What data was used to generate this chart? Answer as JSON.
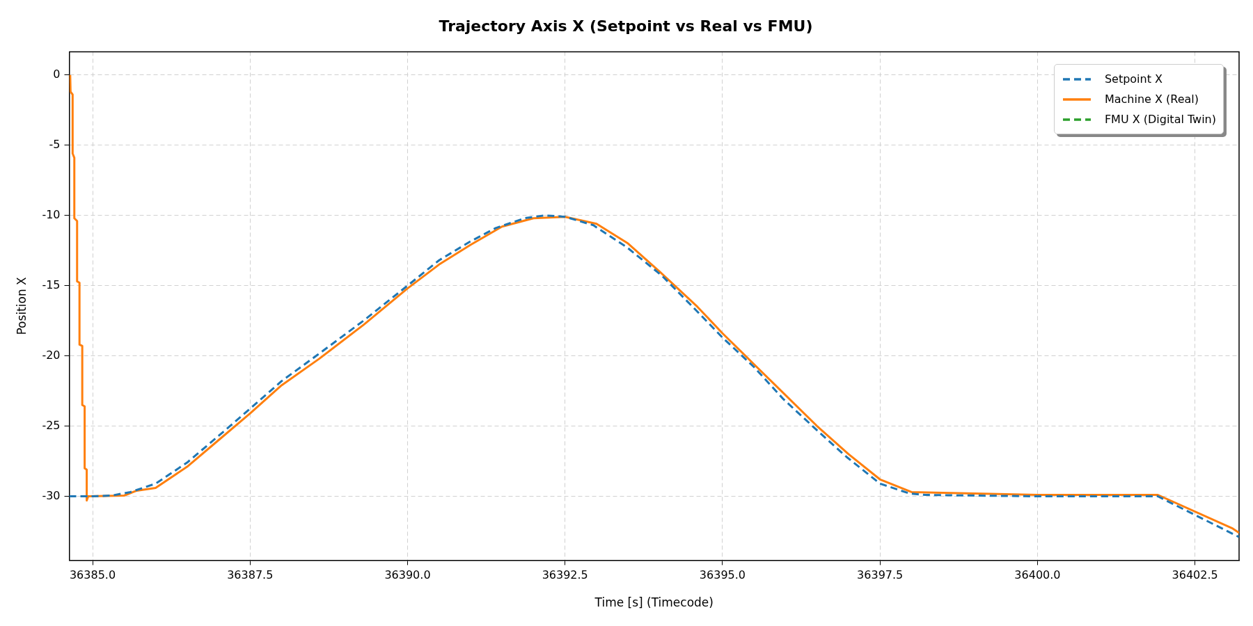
{
  "chart_data": {
    "type": "line",
    "title": "Trajectory Axis X (Setpoint vs Real vs FMU)",
    "xlabel": "Time [s] (Timecode)",
    "ylabel": "Position X",
    "xlim": [
      36384.63,
      36403.2
    ],
    "ylim": [
      -34.55,
      1.65
    ],
    "xticks": [
      {
        "value": 36385,
        "label": "36385.0"
      },
      {
        "value": 36387.5,
        "label": "36387.5"
      },
      {
        "value": 36390,
        "label": "36390.0"
      },
      {
        "value": 36392.5,
        "label": "36392.5"
      },
      {
        "value": 36395,
        "label": "36395.0"
      },
      {
        "value": 36397.5,
        "label": "36397.5"
      },
      {
        "value": 36400,
        "label": "36400.0"
      },
      {
        "value": 36402.5,
        "label": "36402.5"
      }
    ],
    "yticks": [
      -30,
      -25,
      -20,
      -15,
      -10,
      -5,
      0
    ],
    "grid": true,
    "legend": "top right",
    "marker": "none",
    "series": [
      {
        "name": "Setpoint X",
        "color": "#1f77b4",
        "line_style": "dashed",
        "x": [
          36384.63,
          36385.0,
          36385.3,
          36385.6,
          36386.0,
          36386.5,
          36387.0,
          36387.49,
          36388.0,
          36388.58,
          36389.3,
          36390.0,
          36390.5,
          36390.98,
          36391.4,
          36391.86,
          36392.18,
          36392.5,
          36392.95,
          36393.49,
          36394.04,
          36394.59,
          36395.0,
          36395.5,
          36395.97,
          36396.5,
          36396.97,
          36397.5,
          36397.97,
          36398.22,
          36399.0,
          36400.0,
          36401.91,
          36403.2
        ],
        "values": [
          -30,
          -30,
          -29.95,
          -29.7,
          -29.1,
          -27.6,
          -25.7,
          -23.8,
          -21.8,
          -19.9,
          -17.5,
          -15.0,
          -13.2,
          -11.9,
          -10.9,
          -10.2,
          -10.0,
          -10.1,
          -10.7,
          -12.3,
          -14.3,
          -16.8,
          -18.7,
          -20.8,
          -23.1,
          -25.3,
          -27.2,
          -29.1,
          -29.8,
          -29.9,
          -29.95,
          -30.0,
          -30.0,
          -32.9
        ]
      },
      {
        "name": "Machine X (Real)",
        "color": "#ff7f0e",
        "line_style": "solid",
        "x": [
          36384.644,
          36384.65,
          36384.683,
          36384.683,
          36384.71,
          36384.71,
          36384.754,
          36384.754,
          36384.792,
          36384.792,
          36384.836,
          36384.836,
          36384.874,
          36384.874,
          36384.907,
          36384.907,
          36384.93,
          36385.5,
          36385.7,
          36386.0,
          36386.5,
          36387.0,
          36387.5,
          36388.0,
          36388.6,
          36389.3,
          36390.0,
          36390.5,
          36391.0,
          36391.5,
          36392.0,
          36392.5,
          36393.0,
          36393.5,
          36394.0,
          36394.6,
          36395.0,
          36395.5,
          36396.0,
          36396.5,
          36397.0,
          36397.5,
          36398.0,
          36400.0,
          36401.91,
          36403.1,
          36403.2
        ],
        "values": [
          0,
          -1.2,
          -1.4,
          -5.6,
          -5.9,
          -10.2,
          -10.4,
          -14.7,
          -14.8,
          -19.2,
          -19.3,
          -23.5,
          -23.6,
          -28,
          -28.1,
          -30.3,
          -30.0,
          -29.95,
          -29.6,
          -29.4,
          -27.9,
          -26.0,
          -24.1,
          -22.1,
          -20.2,
          -17.8,
          -15.2,
          -13.5,
          -12.1,
          -10.8,
          -10.2,
          -10.1,
          -10.6,
          -12.0,
          -14.0,
          -16.5,
          -18.4,
          -20.6,
          -22.8,
          -25.0,
          -27.0,
          -28.8,
          -29.7,
          -29.9,
          -29.9,
          -32.3,
          -32.6
        ]
      },
      {
        "name": "FMU X (Digital Twin)",
        "color": "#2ca02c",
        "line_style": "dashed"
      }
    ]
  }
}
